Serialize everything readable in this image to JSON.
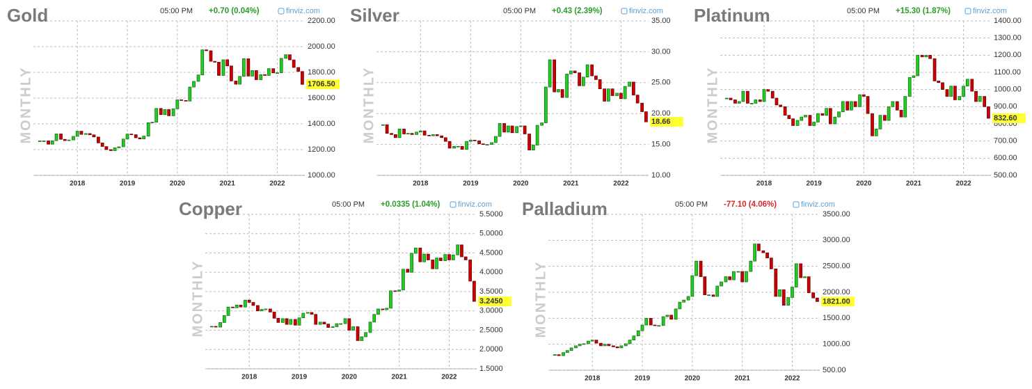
{
  "chart_data": [
    {
      "type": "candlestick",
      "title": "Gold",
      "time": "05:00 PM",
      "change": "+0.70 (0.04%)",
      "change_color": "#2a9d2a",
      "source": "finviz.com",
      "side_label": "MONTHLY",
      "last_label": "1706.50",
      "xlim": [
        2017.12,
        2022.55
      ],
      "xticks": [
        2018,
        2019,
        2020,
        2021,
        2022
      ],
      "ylim": [
        1000,
        2200
      ],
      "yticks": [
        {
          "value": 1000,
          "label": "1000.00"
        },
        {
          "value": 1200,
          "label": "1200.00"
        },
        {
          "value": 1400,
          "label": "1400.00"
        },
        {
          "value": 1600,
          "label": "1600.00"
        },
        {
          "value": 1800,
          "label": "1800.00"
        },
        {
          "value": 2000,
          "label": "2000.00"
        },
        {
          "value": 2200,
          "label": "2200.00"
        }
      ],
      "x": [
        2017.25,
        2017.33,
        2017.42,
        2017.5,
        2017.58,
        2017.67,
        2017.75,
        2017.83,
        2017.92,
        2018,
        2018.08,
        2018.17,
        2018.25,
        2018.33,
        2018.42,
        2018.5,
        2018.58,
        2018.67,
        2018.75,
        2018.83,
        2018.92,
        2019,
        2019.08,
        2019.17,
        2019.25,
        2019.33,
        2019.42,
        2019.5,
        2019.58,
        2019.67,
        2019.75,
        2019.83,
        2019.92,
        2020,
        2020.08,
        2020.17,
        2020.25,
        2020.33,
        2020.42,
        2020.5,
        2020.58,
        2020.67,
        2020.75,
        2020.83,
        2020.92,
        2021,
        2021.08,
        2021.17,
        2021.25,
        2021.33,
        2021.42,
        2021.5,
        2021.58,
        2021.67,
        2021.75,
        2021.83,
        2021.92,
        2022,
        2022.08,
        2022.17,
        2022.25,
        2022.33,
        2022.42,
        2022.5
      ],
      "values": [
        1268,
        1268,
        1242,
        1269,
        1322,
        1280,
        1270,
        1275,
        1303,
        1343,
        1318,
        1325,
        1315,
        1298,
        1252,
        1224,
        1200,
        1192,
        1214,
        1222,
        1282,
        1321,
        1316,
        1292,
        1283,
        1305,
        1409,
        1413,
        1520,
        1472,
        1511,
        1463,
        1517,
        1587,
        1582,
        1577,
        1686,
        1730,
        1780,
        1975,
        1968,
        1886,
        1879,
        1776,
        1898,
        1850,
        1733,
        1708,
        1769,
        1906,
        1771,
        1814,
        1743,
        1783,
        1776,
        1829,
        1796,
        1797,
        1909,
        1937,
        1897,
        1838,
        1807,
        1706.5
      ]
    },
    {
      "type": "candlestick",
      "title": "Silver",
      "time": "05:00 PM",
      "change": "+0.43 (2.39%)",
      "change_color": "#2a9d2a",
      "source": "finviz.com",
      "side_label": "MONTHLY",
      "last_label": "18.66",
      "xlim": [
        2017.12,
        2022.55
      ],
      "xticks": [
        2018,
        2019,
        2020,
        2021,
        2022
      ],
      "ylim": [
        10,
        35
      ],
      "yticks": [
        {
          "value": 10,
          "label": "10.00"
        },
        {
          "value": 15,
          "label": "15.00"
        },
        {
          "value": 20,
          "label": "20.00"
        },
        {
          "value": 25,
          "label": "25.00"
        },
        {
          "value": 30,
          "label": "30.00"
        },
        {
          "value": 35,
          "label": "35.00"
        }
      ],
      "x": [
        2017.25,
        2017.33,
        2017.42,
        2017.5,
        2017.58,
        2017.67,
        2017.75,
        2017.83,
        2017.92,
        2018,
        2018.08,
        2018.17,
        2018.25,
        2018.33,
        2018.42,
        2018.5,
        2018.58,
        2018.67,
        2018.75,
        2018.83,
        2018.92,
        2019,
        2019.08,
        2019.17,
        2019.25,
        2019.33,
        2019.42,
        2019.5,
        2019.58,
        2019.67,
        2019.75,
        2019.83,
        2019.92,
        2020,
        2020.08,
        2020.17,
        2020.25,
        2020.33,
        2020.42,
        2020.5,
        2020.58,
        2020.67,
        2020.75,
        2020.83,
        2020.92,
        2021,
        2021.08,
        2021.17,
        2021.25,
        2021.33,
        2021.42,
        2021.5,
        2021.58,
        2021.67,
        2021.75,
        2021.83,
        2021.92,
        2022,
        2022.08,
        2022.17,
        2022.25,
        2022.33,
        2022.42,
        2022.5
      ],
      "values": [
        18.2,
        16.8,
        16.6,
        16.1,
        17.5,
        16.7,
        16.8,
        16.6,
        17.0,
        17.2,
        16.5,
        16.4,
        16.6,
        16.4,
        16.1,
        15.5,
        14.4,
        14.7,
        14.7,
        14.2,
        15.5,
        15.7,
        15.6,
        15.1,
        15.0,
        15.0,
        15.3,
        16.3,
        18.4,
        17.0,
        18.0,
        16.9,
        17.9,
        18.0,
        16.7,
        14.1,
        14.9,
        18.1,
        18.5,
        24.3,
        28.7,
        23.5,
        23.9,
        22.6,
        26.4,
        26.9,
        26.6,
        24.5,
        25.9,
        27.9,
        26.1,
        25.5,
        24.0,
        22.0,
        24.0,
        22.9,
        23.3,
        22.4,
        24.4,
        25.1,
        23.0,
        21.7,
        20.3,
        18.66
      ]
    },
    {
      "type": "candlestick",
      "title": "Platinum",
      "time": "05:00 PM",
      "change": "+15.30 (1.87%)",
      "change_color": "#2a9d2a",
      "source": "finviz.com",
      "side_label": "MONTHLY",
      "last_label": "832.60",
      "xlim": [
        2017.12,
        2022.55
      ],
      "xticks": [
        2018,
        2019,
        2020,
        2021,
        2022
      ],
      "ylim": [
        500,
        1400
      ],
      "yticks": [
        {
          "value": 500,
          "label": "500.00"
        },
        {
          "value": 600,
          "label": "600.00"
        },
        {
          "value": 700,
          "label": "700.00"
        },
        {
          "value": 800,
          "label": "800.00"
        },
        {
          "value": 900,
          "label": "900.00"
        },
        {
          "value": 1000,
          "label": "1000.00"
        },
        {
          "value": 1100,
          "label": "1100.00"
        },
        {
          "value": 1200,
          "label": "1200.00"
        },
        {
          "value": 1300,
          "label": "1300.00"
        },
        {
          "value": 1400,
          "label": "1400.00"
        }
      ],
      "x": [
        2017.25,
        2017.33,
        2017.42,
        2017.5,
        2017.58,
        2017.67,
        2017.75,
        2017.83,
        2017.92,
        2018,
        2018.08,
        2018.17,
        2018.25,
        2018.33,
        2018.42,
        2018.5,
        2018.58,
        2018.67,
        2018.75,
        2018.83,
        2018.92,
        2019,
        2019.08,
        2019.17,
        2019.25,
        2019.33,
        2019.42,
        2019.5,
        2019.58,
        2019.67,
        2019.75,
        2019.83,
        2019.92,
        2020,
        2020.08,
        2020.17,
        2020.25,
        2020.33,
        2020.42,
        2020.5,
        2020.58,
        2020.67,
        2020.75,
        2020.83,
        2020.92,
        2021,
        2021.08,
        2021.17,
        2021.25,
        2021.33,
        2021.42,
        2021.5,
        2021.58,
        2021.67,
        2021.75,
        2021.83,
        2021.92,
        2022,
        2022.08,
        2022.17,
        2022.25,
        2022.33,
        2022.42,
        2022.5
      ],
      "values": [
        950,
        940,
        920,
        930,
        990,
        920,
        920,
        940,
        930,
        1000,
        990,
        950,
        910,
        900,
        850,
        830,
        790,
        820,
        840,
        850,
        790,
        810,
        860,
        850,
        890,
        800,
        840,
        870,
        930,
        880,
        930,
        900,
        970,
        960,
        860,
        730,
        770,
        850,
        820,
        900,
        930,
        880,
        840,
        960,
        1070,
        1080,
        1200,
        1190,
        1200,
        1180,
        1050,
        1040,
        1000,
        960,
        1020,
        940,
        960,
        1020,
        1060,
        990,
        930,
        960,
        900,
        832.6
      ]
    },
    {
      "type": "candlestick",
      "title": "Copper",
      "time": "05:00 PM",
      "change": "+0.0335 (1.04%)",
      "change_color": "#2a9d2a",
      "source": "finviz.com",
      "side_label": "MONTHLY",
      "last_label": "3.2450",
      "xlim": [
        2017.12,
        2022.55
      ],
      "xticks": [
        2018,
        2019,
        2020,
        2021,
        2022
      ],
      "ylim": [
        1.5,
        5.5
      ],
      "yticks": [
        {
          "value": 1.5,
          "label": "1.5000"
        },
        {
          "value": 2,
          "label": "2.0000"
        },
        {
          "value": 2.5,
          "label": "2.5000"
        },
        {
          "value": 3,
          "label": "3.0000"
        },
        {
          "value": 3.5,
          "label": "3.5000"
        },
        {
          "value": 4,
          "label": "4.0000"
        },
        {
          "value": 4.5,
          "label": "4.5000"
        },
        {
          "value": 5,
          "label": "5.0000"
        },
        {
          "value": 5.5,
          "label": "5.5000"
        }
      ],
      "x": [
        2017.25,
        2017.33,
        2017.42,
        2017.5,
        2017.58,
        2017.67,
        2017.75,
        2017.83,
        2017.92,
        2018,
        2018.08,
        2018.17,
        2018.25,
        2018.33,
        2018.42,
        2018.5,
        2018.58,
        2018.67,
        2018.75,
        2018.83,
        2018.92,
        2019,
        2019.08,
        2019.17,
        2019.25,
        2019.33,
        2019.42,
        2019.5,
        2019.58,
        2019.67,
        2019.75,
        2019.83,
        2019.92,
        2020,
        2020.08,
        2020.17,
        2020.25,
        2020.33,
        2020.42,
        2020.5,
        2020.58,
        2020.67,
        2020.75,
        2020.83,
        2020.92,
        2021,
        2021.08,
        2021.17,
        2021.25,
        2021.33,
        2021.42,
        2021.5,
        2021.58,
        2021.67,
        2021.75,
        2021.83,
        2021.92,
        2022,
        2022.08,
        2022.17,
        2022.25,
        2022.33,
        2022.42,
        2022.5
      ],
      "values": [
        2.6,
        2.58,
        2.7,
        2.88,
        3.1,
        3.08,
        3.15,
        3.1,
        3.28,
        3.22,
        3.14,
        3.0,
        3.04,
        3.05,
        2.97,
        2.81,
        2.7,
        2.8,
        2.65,
        2.78,
        2.63,
        2.82,
        2.94,
        2.96,
        2.91,
        2.65,
        2.71,
        2.66,
        2.57,
        2.59,
        2.67,
        2.67,
        2.8,
        2.5,
        2.59,
        2.23,
        2.33,
        2.44,
        2.71,
        2.91,
        3.05,
        3.03,
        3.07,
        3.52,
        3.51,
        3.54,
        4.08,
        4.0,
        4.49,
        4.63,
        4.27,
        4.47,
        4.32,
        4.09,
        4.37,
        4.3,
        4.46,
        4.32,
        4.45,
        4.71,
        4.4,
        4.32,
        3.77,
        3.245
      ]
    },
    {
      "type": "candlestick",
      "title": "Palladium",
      "time": "05:00 PM",
      "change": "-77.10 (4.06%)",
      "change_color": "#d62728",
      "source": "finviz.com",
      "side_label": "MONTHLY",
      "last_label": "1821.00",
      "xlim": [
        2017.12,
        2022.55
      ],
      "xticks": [
        2018,
        2019,
        2020,
        2021,
        2022
      ],
      "ylim": [
        500,
        3500
      ],
      "yticks": [
        {
          "value": 500,
          "label": "500.00"
        },
        {
          "value": 1000,
          "label": "1000.00"
        },
        {
          "value": 1500,
          "label": "1500.00"
        },
        {
          "value": 2000,
          "label": "2000.00"
        },
        {
          "value": 2500,
          "label": "2500.00"
        },
        {
          "value": 3000,
          "label": "3000.00"
        },
        {
          "value": 3500,
          "label": "3500.00"
        }
      ],
      "x": [
        2017.25,
        2017.33,
        2017.42,
        2017.5,
        2017.58,
        2017.67,
        2017.75,
        2017.83,
        2017.92,
        2018,
        2018.08,
        2018.17,
        2018.25,
        2018.33,
        2018.42,
        2018.5,
        2018.58,
        2018.67,
        2018.75,
        2018.83,
        2018.92,
        2019,
        2019.08,
        2019.17,
        2019.25,
        2019.33,
        2019.42,
        2019.5,
        2019.58,
        2019.67,
        2019.75,
        2019.83,
        2019.92,
        2020,
        2020.08,
        2020.17,
        2020.25,
        2020.33,
        2020.42,
        2020.5,
        2020.58,
        2020.67,
        2020.75,
        2020.83,
        2020.92,
        2021,
        2021.08,
        2021.17,
        2021.25,
        2021.33,
        2021.42,
        2021.5,
        2021.58,
        2021.67,
        2021.75,
        2021.83,
        2021.92,
        2022,
        2022.08,
        2022.17,
        2022.25,
        2022.33,
        2022.42,
        2022.5
      ],
      "values": [
        800,
        780,
        840,
        880,
        930,
        970,
        1000,
        1010,
        1060,
        1080,
        1020,
        970,
        1000,
        970,
        950,
        930,
        970,
        1010,
        1080,
        1160,
        1260,
        1370,
        1500,
        1370,
        1360,
        1360,
        1530,
        1560,
        1480,
        1680,
        1810,
        1850,
        1920,
        2320,
        2600,
        2300,
        1950,
        1950,
        1920,
        2120,
        2200,
        2300,
        2240,
        2400,
        2400,
        2200,
        2400,
        2600,
        2930,
        2800,
        2760,
        2660,
        2450,
        1920,
        2050,
        1750,
        1900,
        2100,
        2550,
        2280,
        2300,
        1990,
        1890,
        1821
      ]
    }
  ]
}
